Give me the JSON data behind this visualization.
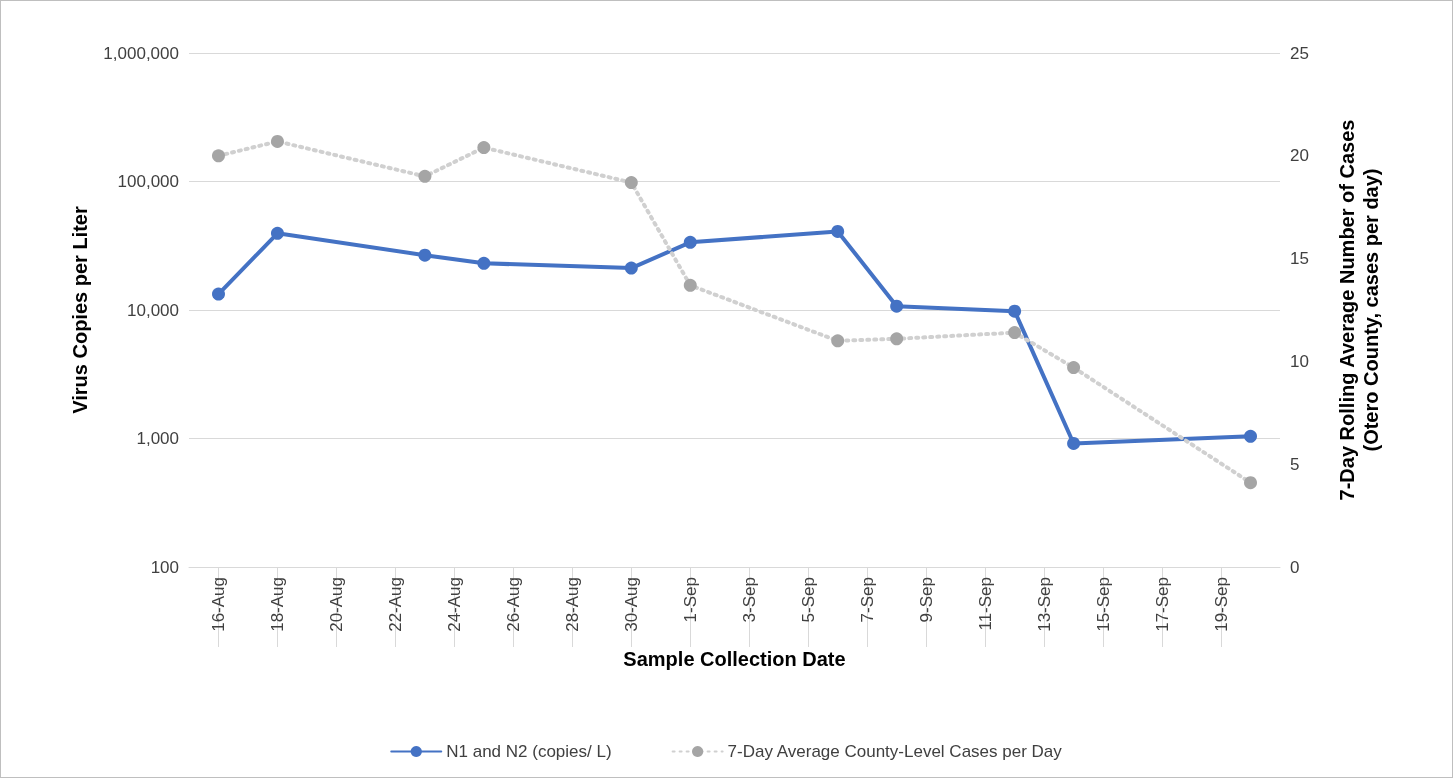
{
  "chart_data": {
    "type": "line",
    "xlabel": "Sample Collection Date",
    "ylabel": "Virus Copies per Liter",
    "y2label": "7-Day Rolling Average Number of Cases\n(Otero County, cases per day)",
    "series": [
      {
        "name": "N1 and N2 (copies/ L)",
        "color": "#4472c4",
        "marker": "circle",
        "line_style": "solid",
        "x": [
          "--08-16",
          "--08-18",
          "--08-23",
          "--08-25",
          "--08-30",
          "--09-01",
          "--09-06",
          "--09-08",
          "--09-12",
          "--09-14",
          "--09-20"
        ],
        "values": [
          13300,
          39500,
          26700,
          23100,
          21200,
          33600,
          40900,
          10700,
          9800,
          915,
          1040
        ]
      },
      {
        "name": "7-Day Average County-Level Cases per Day",
        "color": "#a5a5a5",
        "marker": "circle",
        "line_style": "dotted",
        "axis": "y2",
        "x": [
          "--08-16",
          "--08-18",
          "--08-23",
          "--08-25",
          "--08-30",
          "--09-01",
          "--09-06",
          "--09-08",
          "--09-12",
          "--09-14",
          "--09-20"
        ],
        "values": [
          20.0,
          20.7,
          19.0,
          20.4,
          18.7,
          13.7,
          11.0,
          11.1,
          11.4,
          9.7,
          4.1
        ]
      }
    ],
    "xlim": [
      "--08-15",
      "--09-21"
    ],
    "xticks": [
      {
        "value": "--08-16",
        "label": "16-Aug"
      },
      {
        "value": "--08-18",
        "label": "18-Aug"
      },
      {
        "value": "--08-20",
        "label": "20-Aug"
      },
      {
        "value": "--08-22",
        "label": "22-Aug"
      },
      {
        "value": "--08-24",
        "label": "24-Aug"
      },
      {
        "value": "--08-26",
        "label": "26-Aug"
      },
      {
        "value": "--08-28",
        "label": "28-Aug"
      },
      {
        "value": "--08-30",
        "label": "30-Aug"
      },
      {
        "value": "--09-01",
        "label": "1-Sep"
      },
      {
        "value": "--09-03",
        "label": "3-Sep"
      },
      {
        "value": "--09-05",
        "label": "5-Sep"
      },
      {
        "value": "--09-07",
        "label": "7-Sep"
      },
      {
        "value": "--09-09",
        "label": "9-Sep"
      },
      {
        "value": "--09-11",
        "label": "11-Sep"
      },
      {
        "value": "--09-13",
        "label": "13-Sep"
      },
      {
        "value": "--09-15",
        "label": "15-Sep"
      },
      {
        "value": "--09-17",
        "label": "17-Sep"
      },
      {
        "value": "--09-19",
        "label": "19-Sep"
      }
    ],
    "ylim": [
      100,
      1000000
    ],
    "yticks": [
      100,
      {
        "value": 1000,
        "label": "1,000"
      },
      {
        "value": 10000,
        "label": "10,000"
      },
      {
        "value": 100000,
        "label": "100,000"
      },
      {
        "value": 1000000,
        "label": "1,000,000"
      }
    ],
    "y2lim": [
      0,
      25
    ],
    "y2ticks": [
      0,
      5,
      10,
      15,
      20,
      25
    ],
    "log": "y",
    "grid": "y",
    "legend": "bottom"
  }
}
